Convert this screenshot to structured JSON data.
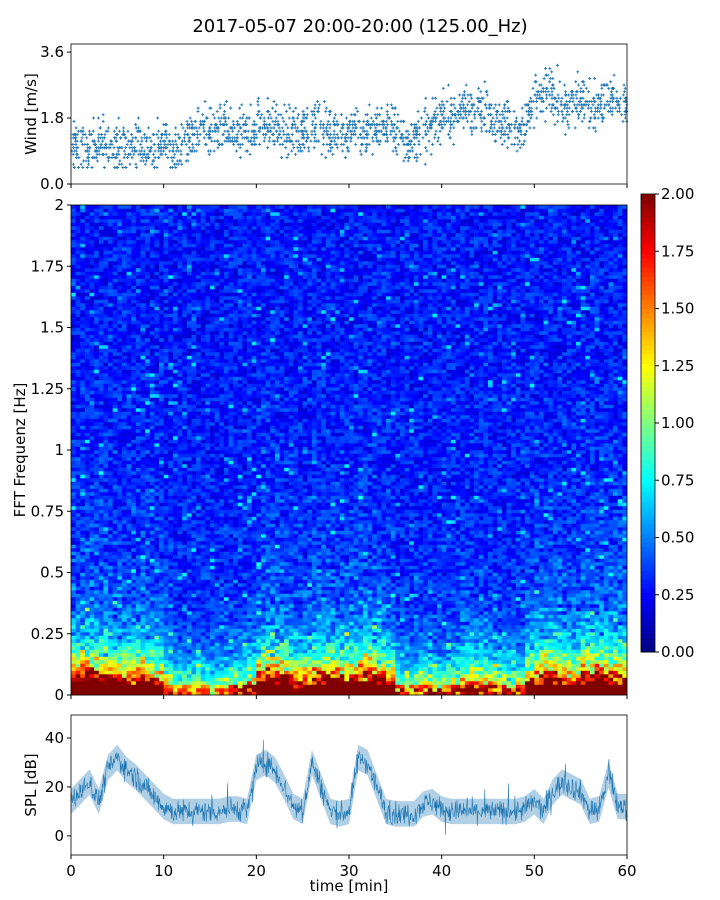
{
  "title": "2017-05-07 20:00-20:00 (125.00_Hz)",
  "chart_data": [
    {
      "type": "scatter",
      "name": "wind",
      "ylabel": "Wind [m/s]",
      "ylim": [
        0,
        3.82
      ],
      "yticks": [
        "0.0",
        "1.8",
        "3.6"
      ],
      "ytick_values": [
        0,
        1.8,
        3.6
      ],
      "xlim": [
        0,
        60
      ],
      "marker": "+",
      "color": "#1f77b4",
      "x_unit": "min",
      "wind_mean_per_minute": [
        1.0,
        1.0,
        1.1,
        1.1,
        1.0,
        1.1,
        1.0,
        1.1,
        1.0,
        1.0,
        1.1,
        1.0,
        1.3,
        1.4,
        1.5,
        1.4,
        1.5,
        1.3,
        1.4,
        1.4,
        1.7,
        1.6,
        1.5,
        1.4,
        1.4,
        1.5,
        1.6,
        1.5,
        1.4,
        1.4,
        1.5,
        1.4,
        1.5,
        1.6,
        1.6,
        1.3,
        1.2,
        1.3,
        1.4,
        1.8,
        1.8,
        1.9,
        2.0,
        2.1,
        2.0,
        1.9,
        1.7,
        1.6,
        1.4,
        1.8,
        2.4,
        2.5,
        2.3,
        2.0,
        2.2,
        2.3,
        2.2,
        2.2,
        2.3,
        2.2
      ],
      "wind_spread": 0.45
    },
    {
      "type": "heatmap",
      "name": "spectrogram",
      "ylabel": "FFT Frequenz [Hz]",
      "ylim": [
        0,
        2
      ],
      "yticks": [
        "0",
        "0.25",
        "0.5",
        "0.75",
        "1",
        "1.25",
        "1.5",
        "1.75",
        "2"
      ],
      "ytick_values": [
        0,
        0.25,
        0.5,
        0.75,
        1,
        1.25,
        1.5,
        1.75,
        2
      ],
      "xlim": [
        0,
        60
      ],
      "colormap": "jet",
      "clim": [
        0,
        2
      ],
      "colorbar_ticks": [
        "0.00",
        "0.25",
        "0.50",
        "0.75",
        "1.00",
        "1.25",
        "1.50",
        "1.75",
        "2.00"
      ],
      "colorbar_tick_values": [
        0,
        0.25,
        0.5,
        0.75,
        1,
        1.25,
        1.5,
        1.75,
        2
      ],
      "low_freq_energy_per_minute": [
        2.2,
        2.4,
        2.3,
        2.2,
        2.0,
        1.9,
        2.0,
        2.1,
        1.8,
        1.6,
        1.0,
        0.7,
        0.7,
        0.8,
        0.8,
        0.7,
        0.8,
        0.9,
        1.0,
        1.2,
        2.0,
        2.2,
        2.1,
        1.8,
        1.4,
        1.6,
        2.0,
        2.1,
        2.0,
        1.9,
        1.9,
        2.2,
        2.3,
        2.1,
        1.6,
        0.8,
        0.7,
        0.8,
        0.9,
        0.8,
        0.9,
        1.0,
        1.4,
        1.3,
        1.2,
        1.1,
        1.0,
        0.9,
        1.0,
        1.6,
        2.0,
        2.2,
        2.2,
        1.8,
        1.6,
        2.3,
        2.4,
        2.3,
        2.2,
        2.1
      ],
      "background_level": 0.3
    },
    {
      "type": "line",
      "name": "spl",
      "ylabel": "SPL [dB]",
      "xlabel": "time [min]",
      "ylim": [
        -7.8,
        49.4
      ],
      "yticks": [
        "0",
        "20",
        "40"
      ],
      "ytick_values": [
        0,
        20,
        40
      ],
      "xlim": [
        0,
        60
      ],
      "xticks": [
        "0",
        "10",
        "20",
        "30",
        "40",
        "50",
        "60"
      ],
      "xtick_values": [
        0,
        10,
        20,
        30,
        40,
        50,
        60
      ],
      "color": "#1f77b4",
      "spl_mean_per_minute": [
        14,
        18,
        22,
        14,
        28,
        32,
        27,
        24,
        20,
        16,
        12,
        10,
        10,
        10,
        10,
        10,
        10,
        11,
        11,
        10,
        28,
        30,
        27,
        20,
        12,
        10,
        30,
        20,
        10,
        9,
        10,
        32,
        30,
        20,
        10,
        9,
        9,
        9,
        13,
        14,
        11,
        10,
        10,
        10,
        10,
        10,
        10,
        10,
        10,
        11,
        14,
        10,
        18,
        22,
        20,
        18,
        10,
        11,
        25,
        12
      ],
      "spl_spread": 4
    }
  ]
}
